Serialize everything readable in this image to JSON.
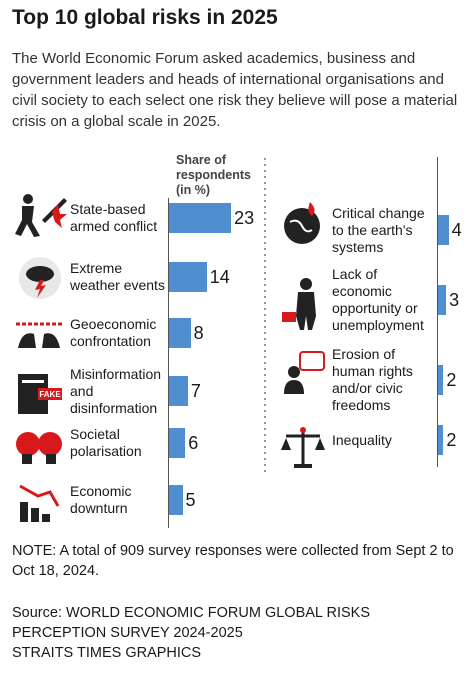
{
  "chart_data": {
    "type": "bar",
    "title": "Top 10 global risks in 2025",
    "subtitle": "The World Economic Forum asked academics, business and government leaders and heads of international organisations and civil society to each select one risk they believe will pose a material crisis on a global scale in 2025.",
    "axis_label": "Share of respondents (in %)",
    "categories": [
      "State-based armed conflict",
      "Extreme weather events",
      "Geoeconomic confrontation",
      "Misinformation and disinformation",
      "Societal polarisation",
      "Economic downturn",
      "Critical change to the earth's systems",
      "Lack of economic opportunity or unemployment",
      "Erosion of human rights and/or civic freedoms",
      "Inequality"
    ],
    "values": [
      23,
      14,
      8,
      7,
      6,
      5,
      4,
      3,
      2,
      2
    ],
    "color": "#4f8fcf",
    "note": "NOTE: A total of 909 survey responses were collected from Sept 2 to Oct 18, 2024.",
    "source": "Source: WORLD ECONOMIC FORUM GLOBAL RISKS PERCEPTION SURVEY 2024-2025",
    "credit": "STRAITS TIMES GRAPHICS"
  }
}
